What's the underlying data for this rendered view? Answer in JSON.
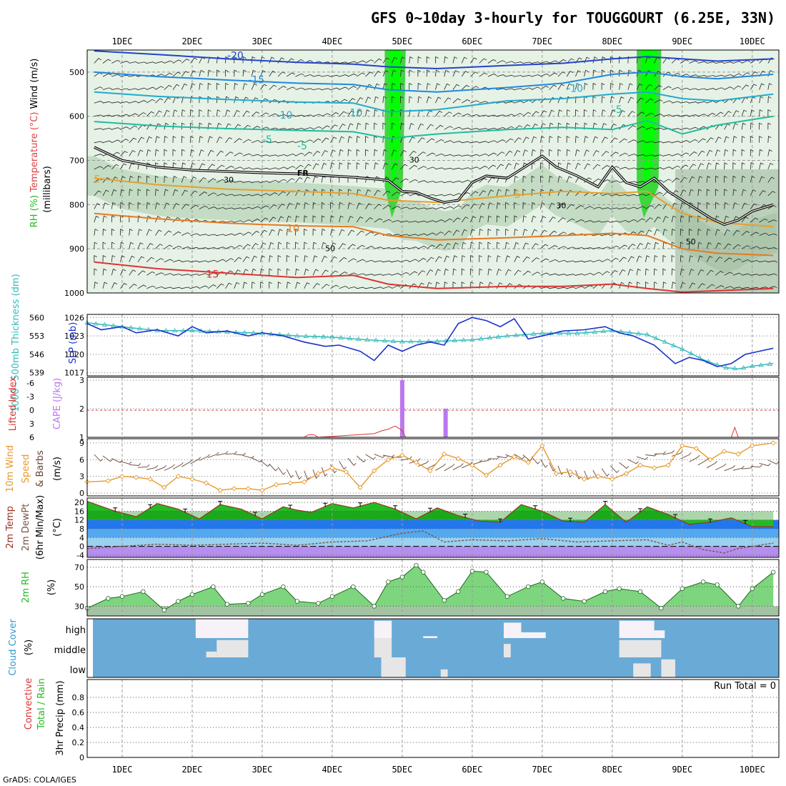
{
  "title": "GFS 0~10day 3-hourly for TOUGGOURT (6.25E, 33N)",
  "footer": "GrADS: COLA/IGES",
  "run_total_label": "Run Total = 0",
  "colors": {
    "rh_light": "#e6f2e6",
    "rh_mid": "#bfd9bf",
    "rh_dark": "#97b497",
    "rh_high": "#3ad93a",
    "rh_max": "#00ff00",
    "slp": "#1a2fcc",
    "thickness": "#33bbbb",
    "cape": "#bb77ee",
    "lifted": "#dd3333",
    "wind10": "#e69a2e",
    "temp_fill": "#22bb22",
    "temp_dark": "#118811",
    "sky": "#6aaad6",
    "cloud": "#e6e6e6"
  },
  "chart_data": [
    {
      "type": "contour",
      "name": "upper_air",
      "ylabel_parts": [
        "RH (%)",
        "Temperature (°C)",
        "Wind (m/s)"
      ],
      "ylabel_unit": "(millibars)",
      "y_ticks": [
        500,
        600,
        700,
        800,
        900,
        1000
      ],
      "ylim": [
        450,
        1000
      ],
      "x_ticks": [
        "1DEC",
        "2DEC",
        "3DEC",
        "4DEC",
        "5DEC",
        "6DEC",
        "7DEC",
        "8DEC",
        "9DEC",
        "10DEC"
      ],
      "temperature_labels": [
        "-20",
        "-15",
        "-10",
        "-5",
        "-10",
        "-5",
        "-5",
        "-10",
        "5",
        "5",
        "10",
        "15"
      ],
      "freezing_label": "FR",
      "rh_labels": [
        "30",
        "30",
        "30",
        "50",
        "50"
      ],
      "isotherms": [
        {
          "t": -20,
          "color": "#2244cc",
          "x": [
            0.6,
            1.5,
            2.5,
            3.5,
            4.3,
            4.8,
            5.5,
            6.5,
            7.3,
            8.0,
            8.5,
            9.0,
            9.5,
            10.3
          ],
          "p": [
            452,
            460,
            470,
            478,
            482,
            488,
            492,
            485,
            480,
            470,
            465,
            470,
            475,
            470
          ]
        },
        {
          "t": -15,
          "color": "#2288dd",
          "x": [
            0.6,
            1.5,
            2.5,
            3.5,
            4.3,
            4.8,
            5.5,
            6.5,
            7.3,
            8.0,
            8.5,
            9.0,
            9.5,
            10.3
          ],
          "p": [
            500,
            510,
            518,
            525,
            528,
            540,
            545,
            535,
            525,
            505,
            500,
            510,
            515,
            505
          ]
        },
        {
          "t": -10,
          "color": "#22aacc",
          "x": [
            0.6,
            1.5,
            2.5,
            3.5,
            4.3,
            4.8,
            5.5,
            6.5,
            7.3,
            8.0,
            8.5,
            9.0,
            9.5,
            10.3
          ],
          "p": [
            545,
            555,
            562,
            568,
            570,
            590,
            585,
            565,
            560,
            550,
            545,
            560,
            565,
            550
          ]
        },
        {
          "t": -5,
          "color": "#22bba0",
          "x": [
            0.6,
            1.5,
            2.5,
            3.5,
            4.3,
            4.8,
            5.5,
            6.5,
            7.3,
            8.0,
            8.5,
            9.0,
            9.5,
            10.3
          ],
          "p": [
            612,
            622,
            628,
            632,
            635,
            650,
            640,
            630,
            625,
            630,
            610,
            640,
            620,
            600
          ]
        },
        {
          "t": 5,
          "color": "#e6a030",
          "x": [
            0.6,
            1.5,
            2.5,
            3.5,
            4.3,
            4.8,
            5.5,
            6.5,
            7.3,
            8.0,
            8.5,
            9.0,
            9.5,
            10.3
          ],
          "p": [
            740,
            755,
            765,
            770,
            775,
            790,
            795,
            780,
            770,
            775,
            770,
            820,
            840,
            850
          ]
        },
        {
          "t": 10,
          "color": "#e67a20",
          "x": [
            0.6,
            1.5,
            2.5,
            3.5,
            4.3,
            4.8,
            5.5,
            6.5,
            7.3,
            8.0,
            8.5,
            9.0,
            9.5,
            10.3
          ],
          "p": [
            820,
            832,
            842,
            848,
            850,
            870,
            880,
            875,
            870,
            865,
            870,
            900,
            910,
            915
          ]
        },
        {
          "t": 15,
          "color": "#dd3333",
          "x": [
            0.6,
            1.5,
            2.5,
            3.5,
            4.3,
            4.8,
            5.5,
            6.5,
            7.3,
            8.0,
            8.5,
            9.0,
            9.5,
            10.3
          ],
          "p": [
            930,
            945,
            955,
            965,
            960,
            980,
            990,
            985,
            985,
            980,
            990,
            998,
            995,
            990
          ]
        }
      ],
      "freezing_level": {
        "x": [
          0.6,
          1.0,
          1.5,
          2.0,
          2.5,
          3.0,
          3.5,
          4.0,
          4.3,
          4.6,
          4.8,
          5.0,
          5.2,
          5.4,
          5.6,
          5.8,
          6.0,
          6.2,
          6.5,
          6.8,
          7.0,
          7.2,
          7.5,
          7.8,
          8.0,
          8.2,
          8.4,
          8.6,
          8.8,
          9.0,
          9.2,
          9.4,
          9.6,
          9.8,
          10.0,
          10.3
        ],
        "p": [
          670,
          700,
          715,
          722,
          725,
          728,
          730,
          735,
          738,
          742,
          745,
          770,
          772,
          785,
          795,
          790,
          750,
          735,
          740,
          710,
          690,
          715,
          735,
          760,
          715,
          750,
          760,
          740,
          770,
          790,
          810,
          830,
          845,
          835,
          815,
          800
        ]
      },
      "rh_moist_bands": [
        [
          4.75,
          5.05
        ],
        [
          8.35,
          8.7
        ]
      ]
    },
    {
      "type": "line",
      "name": "slp_thickness",
      "ylabel_left": "1000~500mb Thickness (dm)",
      "ylabel_right": "SLP (mb)",
      "left_ticks": [
        560,
        553,
        546,
        539
      ],
      "right_ticks": [
        1026,
        1023,
        1020,
        1017
      ],
      "ylim_slp": [
        1016.5,
        1026.5
      ],
      "slp": {
        "x": [
          0.5,
          0.7,
          1.0,
          1.2,
          1.5,
          1.8,
          2.0,
          2.2,
          2.5,
          2.8,
          3.0,
          3.3,
          3.6,
          3.9,
          4.1,
          4.4,
          4.6,
          4.8,
          5.0,
          5.2,
          5.4,
          5.6,
          5.8,
          6.0,
          6.2,
          6.4,
          6.6,
          6.8,
          7.0,
          7.3,
          7.6,
          7.9,
          8.1,
          8.3,
          8.6,
          8.9,
          9.1,
          9.3,
          9.5,
          9.7,
          9.9,
          10.1,
          10.3
        ],
        "y": [
          1025.0,
          1024.0,
          1024.5,
          1023.5,
          1024.0,
          1023.0,
          1024.5,
          1023.5,
          1023.8,
          1023.0,
          1023.5,
          1023.0,
          1022.0,
          1021.3,
          1021.5,
          1020.5,
          1019.0,
          1021.5,
          1020.5,
          1021.5,
          1022.0,
          1021.5,
          1025.0,
          1026.0,
          1025.5,
          1024.5,
          1025.8,
          1022.5,
          1023.0,
          1023.8,
          1024.0,
          1024.5,
          1023.5,
          1023.0,
          1021.5,
          1018.5,
          1019.5,
          1019.0,
          1018.0,
          1018.5,
          1020.0,
          1020.5,
          1021.0
        ]
      },
      "thickness": {
        "x": [
          0.5,
          1.0,
          1.5,
          2.0,
          2.5,
          3.0,
          3.5,
          4.0,
          4.5,
          5.0,
          5.5,
          6.0,
          6.5,
          7.0,
          7.5,
          8.0,
          8.5,
          9.0,
          9.3,
          9.6,
          9.8,
          10.0,
          10.3
        ],
        "y": [
          558.0,
          556.5,
          555.0,
          555.0,
          554.5,
          554.0,
          553.0,
          552.5,
          551.5,
          550.8,
          551.0,
          551.5,
          553.0,
          554.0,
          554.0,
          555.0,
          553.5,
          548.0,
          544.0,
          541.0,
          540.5,
          541.5,
          542.5
        ]
      }
    },
    {
      "type": "bar",
      "name": "cape_lifted",
      "ylabel_left": "Lifted Index",
      "ylabel_right": "CAPE (J/kg)",
      "left_ticks": [
        -6,
        -3,
        0,
        3,
        6
      ],
      "right_ticks": [
        3,
        2,
        1
      ],
      "ylim_cape": [
        1,
        3.1
      ],
      "cape": {
        "x": [
          5.0,
          5.62
        ],
        "y": [
          3.0,
          2.0
        ]
      },
      "lifted": {
        "x": [
          3.6,
          3.65,
          3.7,
          3.75,
          3.8,
          4.6,
          4.7,
          4.8,
          4.9,
          5.0,
          5.05,
          9.7,
          9.75,
          9.8
        ],
        "y": [
          6.0,
          5.5,
          5.4,
          5.5,
          6.0,
          5.2,
          4.6,
          4.2,
          3.5,
          4.5,
          6.0,
          6.0,
          3.8,
          6.0
        ]
      },
      "li_reference": 0
    },
    {
      "type": "line",
      "name": "wind10m",
      "ylabel": "10m Wind Speed & Barbs",
      "yunit": "(m/s)",
      "y_ticks": [
        9,
        6,
        3,
        0
      ],
      "ylim": [
        0,
        9.5
      ],
      "speed": {
        "x": [
          0.5,
          0.8,
          1.0,
          1.2,
          1.4,
          1.6,
          1.8,
          2.0,
          2.2,
          2.4,
          2.6,
          2.8,
          3.0,
          3.2,
          3.4,
          3.6,
          3.8,
          4.0,
          4.2,
          4.4,
          4.6,
          4.8,
          5.0,
          5.2,
          5.4,
          5.6,
          5.8,
          6.0,
          6.2,
          6.4,
          6.6,
          6.8,
          7.0,
          7.2,
          7.4,
          7.6,
          7.8,
          8.0,
          8.2,
          8.4,
          8.6,
          8.8,
          9.0,
          9.2,
          9.4,
          9.6,
          9.8,
          10.0,
          10.3
        ],
        "y": [
          2.0,
          2.2,
          3.0,
          2.8,
          2.5,
          1.0,
          3.0,
          2.5,
          1.8,
          0.5,
          0.8,
          0.8,
          0.5,
          1.5,
          1.8,
          2.0,
          3.5,
          4.5,
          3.8,
          1.0,
          4.0,
          6.0,
          6.8,
          5.5,
          4.0,
          7.0,
          6.2,
          5.0,
          3.2,
          5.0,
          6.5,
          5.5,
          8.5,
          3.5,
          3.8,
          2.5,
          3.0,
          2.5,
          3.5,
          5.0,
          4.5,
          5.0,
          8.5,
          8.0,
          6.0,
          7.5,
          7.0,
          8.5,
          9.0
        ]
      }
    },
    {
      "type": "area",
      "name": "temp_dewpoint",
      "ylabel": "2m Temp 2m DewPt (6hr Min/Max)",
      "yunit": "(°C)",
      "y_ticks": [
        20,
        16,
        12,
        8,
        4,
        0,
        -4
      ],
      "ylim": [
        -5,
        22
      ],
      "temp": {
        "x": [
          0.5,
          0.9,
          1.2,
          1.5,
          1.8,
          2.1,
          2.4,
          2.7,
          3.0,
          3.3,
          3.5,
          3.7,
          4.0,
          4.3,
          4.6,
          4.9,
          5.2,
          5.5,
          5.8,
          6.1,
          6.4,
          6.7,
          7.0,
          7.3,
          7.6,
          7.9,
          8.2,
          8.5,
          8.8,
          9.1,
          9.4,
          9.7,
          10.0,
          10.3
        ],
        "y": [
          20.5,
          16.0,
          13.5,
          19.5,
          17.0,
          12.5,
          19.0,
          17.0,
          12.5,
          18.0,
          16.5,
          15.5,
          19.5,
          17.5,
          20.0,
          17.0,
          12.5,
          17.5,
          14.0,
          11.5,
          11.0,
          19.0,
          16.0,
          11.5,
          11.0,
          19.0,
          11.0,
          18.0,
          14.5,
          10.0,
          11.0,
          13.0,
          9.0,
          9.0
        ]
      },
      "dewpoint": {
        "x": [
          0.5,
          1.0,
          1.5,
          2.0,
          2.5,
          3.0,
          3.5,
          4.0,
          4.5,
          5.0,
          5.3,
          5.6,
          6.0,
          6.5,
          7.0,
          7.5,
          8.0,
          8.5,
          8.8,
          9.0,
          9.3,
          9.6,
          9.8,
          10.0,
          10.3
        ],
        "y": [
          -1.0,
          0.0,
          1.0,
          0.5,
          1.0,
          1.5,
          0.5,
          2.0,
          2.5,
          6.0,
          7.0,
          2.0,
          3.0,
          2.5,
          3.5,
          2.0,
          2.5,
          3.0,
          0.5,
          2.0,
          -1.5,
          -3.0,
          -1.0,
          0.0,
          1.5
        ]
      }
    },
    {
      "type": "area",
      "name": "rh2m",
      "ylabel": "2m RH",
      "yunit": "(%)",
      "y_ticks": [
        70,
        50,
        30
      ],
      "ylim": [
        20,
        78
      ],
      "rh": {
        "x": [
          0.5,
          0.8,
          1.0,
          1.3,
          1.6,
          1.8,
          2.0,
          2.3,
          2.5,
          2.8,
          3.0,
          3.3,
          3.5,
          3.8,
          4.0,
          4.3,
          4.6,
          4.8,
          5.0,
          5.2,
          5.3,
          5.6,
          5.8,
          6.0,
          6.2,
          6.5,
          6.8,
          7.0,
          7.3,
          7.6,
          7.9,
          8.1,
          8.4,
          8.7,
          9.0,
          9.3,
          9.5,
          9.8,
          10.0,
          10.3
        ],
        "y": [
          28.0,
          38.0,
          40.0,
          45.0,
          26.0,
          35.0,
          42.0,
          50.0,
          32.0,
          33.0,
          42.0,
          50.0,
          35.0,
          33.0,
          40.0,
          50.0,
          30.0,
          55.0,
          60.0,
          72.0,
          65.0,
          36.0,
          45.0,
          66.0,
          65.0,
          40.0,
          50.0,
          55.0,
          38.0,
          35.0,
          45.0,
          48.0,
          45.0,
          28.0,
          48.0,
          55.0,
          52.0,
          30.0,
          48.0,
          65.0
        ]
      }
    },
    {
      "type": "heatmap",
      "name": "cloud_cover",
      "ylabel": "Cloud Cover",
      "yunit": "(%)",
      "levels": [
        "high",
        "middle",
        "low"
      ],
      "blocks": [
        {
          "x0": 2.05,
          "x1": 2.8,
          "level": "high",
          "amt": 1.0
        },
        {
          "x0": 4.6,
          "x1": 4.85,
          "level": "high",
          "amt": 0.9
        },
        {
          "x0": 5.3,
          "x1": 5.5,
          "level": "high",
          "amt": 0.1
        },
        {
          "x0": 6.45,
          "x1": 6.7,
          "level": "high",
          "amt": 0.8
        },
        {
          "x0": 6.7,
          "x1": 7.05,
          "level": "high",
          "amt": 0.3
        },
        {
          "x0": 8.1,
          "x1": 8.6,
          "level": "high",
          "amt": 0.9
        },
        {
          "x0": 8.6,
          "x1": 8.75,
          "level": "high",
          "amt": 0.4
        },
        {
          "x0": 2.35,
          "x1": 2.8,
          "level": "middle",
          "amt": 0.9
        },
        {
          "x0": 2.2,
          "x1": 2.35,
          "level": "middle",
          "amt": 0.3
        },
        {
          "x0": 4.6,
          "x1": 4.85,
          "level": "middle",
          "amt": 1.0
        },
        {
          "x0": 6.45,
          "x1": 6.55,
          "level": "middle",
          "amt": 0.7
        },
        {
          "x0": 8.1,
          "x1": 8.7,
          "level": "middle",
          "amt": 0.9
        },
        {
          "x0": 4.7,
          "x1": 5.05,
          "level": "low",
          "amt": 1.0
        },
        {
          "x0": 5.55,
          "x1": 5.65,
          "level": "low",
          "amt": 0.4
        },
        {
          "x0": 8.3,
          "x1": 8.55,
          "level": "low",
          "amt": 0.7
        },
        {
          "x0": 8.7,
          "x1": 8.9,
          "level": "low",
          "amt": 0.9
        }
      ]
    },
    {
      "type": "bar",
      "name": "precip",
      "ylabel_parts": [
        "Total / Rain",
        "Convective"
      ],
      "ylabel": "3hr Precip (mm)",
      "y_ticks": [
        0.8,
        0.6,
        0.4,
        0.2,
        0
      ],
      "ylim": [
        0,
        1.0
      ],
      "values": []
    }
  ]
}
